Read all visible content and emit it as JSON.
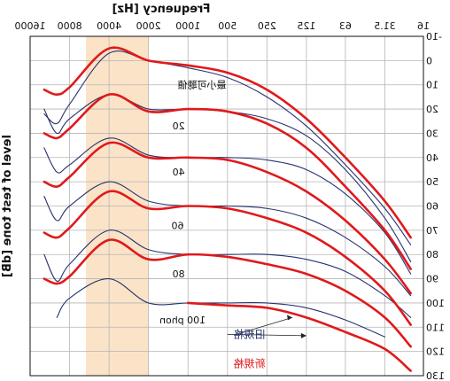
{
  "chart_data": {
    "type": "line",
    "title": "",
    "xlabel": "Frequency [Hz]",
    "ylabel": "level of test tone [dB]",
    "x_scale": "log",
    "xlim": [
      16,
      16000
    ],
    "ylim": [
      -10,
      130
    ],
    "x_ticks": [
      16,
      31.5,
      63,
      125,
      250,
      500,
      1000,
      2000,
      4000,
      8000,
      16000
    ],
    "x_tick_labels": [
      "16",
      "31.5",
      "63",
      "125",
      "250",
      "500",
      "1000",
      "2000",
      "4000",
      "8000",
      "16000"
    ],
    "y_ticks": [
      -10,
      0,
      10,
      20,
      30,
      40,
      50,
      60,
      70,
      80,
      90,
      100,
      110,
      120,
      130
    ],
    "grid": true,
    "highlight_band_hz": [
      2000,
      6000
    ],
    "highlight_color": "#fbe3c8",
    "new_color": "#e0191b",
    "old_color": "#27336e",
    "legend": [
      {
        "label": "新規格",
        "color": "#e0191b"
      },
      {
        "label": "旧規格",
        "color": "#27336e"
      }
    ],
    "curve_labels": [
      {
        "text": "最小可聴値",
        "phon": "threshold"
      },
      {
        "text": "20",
        "phon": 20
      },
      {
        "text": "40",
        "phon": 40
      },
      {
        "text": "60",
        "phon": 60
      },
      {
        "text": "80",
        "phon": 80
      },
      {
        "text": "100 phon",
        "phon": 100
      }
    ],
    "x": [
      20,
      31.5,
      63,
      125,
      250,
      500,
      1000,
      2000,
      4000,
      8000,
      10000,
      12500
    ],
    "series": [
      {
        "name": "新規格",
        "phon": "threshold",
        "x": [
          20,
          31.5,
          63,
          125,
          250,
          500,
          1000,
          2000,
          4000,
          8000,
          10000,
          12500
        ],
        "values": [
          73,
          58,
          40,
          24,
          12,
          5,
          2,
          0,
          -5,
          11,
          14,
          12
        ]
      },
      {
        "name": "新規格",
        "phon": 20,
        "x": [
          20,
          31.5,
          63,
          125,
          250,
          500,
          1000,
          2000,
          4000,
          8000,
          10000,
          12500
        ],
        "values": [
          86,
          70,
          52,
          36,
          26,
          21,
          20,
          21,
          14,
          28,
          32,
          30
        ]
      },
      {
        "name": "新規格",
        "phon": 40,
        "x": [
          20,
          31.5,
          63,
          125,
          250,
          500,
          1000,
          2000,
          4000,
          8000,
          10000,
          12500
        ],
        "values": [
          96,
          82,
          66,
          54,
          46,
          41,
          40,
          40,
          34,
          48,
          52,
          50
        ]
      },
      {
        "name": "新規格",
        "phon": 60,
        "x": [
          20,
          31.5,
          63,
          125,
          250,
          500,
          1000,
          2000,
          4000,
          8000,
          10000,
          12500
        ],
        "values": [
          109,
          95,
          81,
          71,
          65,
          61,
          60,
          61,
          54,
          69,
          73,
          71
        ]
      },
      {
        "name": "新規格",
        "phon": 80,
        "x": [
          20,
          31.5,
          63,
          125,
          250,
          500,
          1000,
          2000,
          4000,
          8000,
          10000,
          12500
        ],
        "values": [
          118,
          106,
          95,
          88,
          84,
          81,
          80,
          82,
          74,
          89,
          92,
          90
        ]
      },
      {
        "name": "新規格",
        "phon": 100,
        "x": [
          20,
          31.5,
          63,
          125,
          250,
          500,
          1000
        ],
        "values": [
          128,
          119,
          112,
          106,
          102,
          101,
          100
        ]
      },
      {
        "name": "旧規格",
        "phon": "threshold",
        "x": [
          20,
          31.5,
          63,
          125,
          250,
          500,
          1000,
          2000,
          4000,
          8000,
          10000,
          12500
        ],
        "values": [
          76,
          61,
          43,
          27,
          15,
          7,
          3,
          0,
          -3,
          18,
          26,
          22
        ]
      },
      {
        "name": "旧規格",
        "phon": 20,
        "x": [
          20,
          31.5,
          63,
          125,
          250,
          500,
          1000,
          2000,
          4000,
          8000,
          10000,
          12500
        ],
        "values": [
          83,
          65,
          45,
          31,
          24,
          21,
          20,
          20,
          14,
          24,
          30,
          20
        ]
      },
      {
        "name": "旧規格",
        "phon": 40,
        "x": [
          20,
          31.5,
          63,
          125,
          250,
          500,
          1000,
          2000,
          4000,
          8000,
          10000,
          12500
        ],
        "values": [
          88,
          71,
          55,
          45,
          41,
          40,
          40,
          39,
          32,
          43,
          46,
          36
        ]
      },
      {
        "name": "旧規格",
        "phon": 60,
        "x": [
          20,
          31.5,
          63,
          125,
          250,
          500,
          1000,
          2000,
          4000,
          8000,
          10000,
          12500
        ],
        "values": [
          97,
          85,
          73,
          65,
          61,
          60,
          60,
          58,
          50,
          60,
          66,
          56
        ]
      },
      {
        "name": "旧規格",
        "phon": 80,
        "x": [
          20,
          31.5,
          63,
          125,
          250,
          500,
          1000,
          2000,
          4000,
          8000,
          10000,
          12500
        ],
        "values": [
          106,
          97,
          87,
          82,
          80,
          80,
          80,
          78,
          70,
          84,
          91,
          80
        ]
      },
      {
        "name": "旧規格",
        "phon": 100,
        "x": [
          31.5,
          63,
          125,
          250,
          500,
          1000,
          2000,
          4000,
          8000,
          10000
        ],
        "values": [
          114,
          107,
          102,
          100,
          100,
          100,
          100,
          90,
          98,
          106
        ]
      }
    ]
  }
}
